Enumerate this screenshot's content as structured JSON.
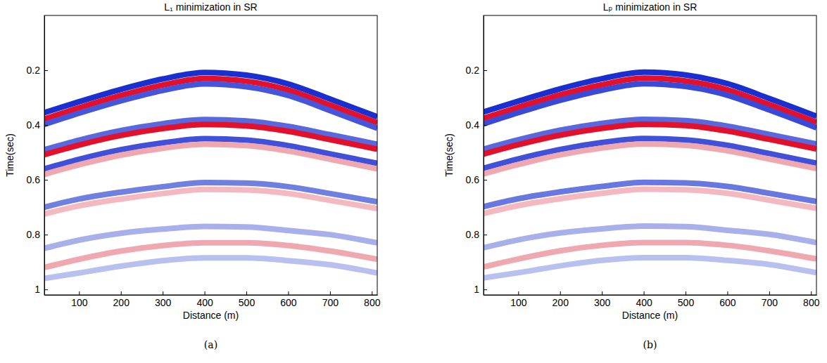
{
  "chart_data": [
    {
      "type": "line",
      "title": "L₁ minimization in SR",
      "annotation": "(a)",
      "x_label": "Distance (m)",
      "y_label": "Time(sec)",
      "xlim": [
        17,
        813
      ],
      "ylim": [
        0,
        1.02
      ],
      "xticks": [
        100,
        200,
        300,
        400,
        500,
        600,
        700,
        800
      ],
      "yticks": [
        0.2,
        0.4,
        0.6,
        0.8,
        1
      ],
      "x": [
        17,
        100,
        200,
        300,
        400,
        500,
        600,
        700,
        813
      ],
      "series": [
        {
          "color": "#1a2fd0",
          "values": [
            0.355,
            0.315,
            0.27,
            0.232,
            0.208,
            0.218,
            0.25,
            0.305,
            0.37
          ]
        },
        {
          "color": "#e3102b",
          "values": [
            0.378,
            0.337,
            0.292,
            0.254,
            0.23,
            0.24,
            0.272,
            0.327,
            0.392
          ]
        },
        {
          "color": "#4656dc",
          "values": [
            0.398,
            0.357,
            0.312,
            0.274,
            0.25,
            0.26,
            0.292,
            0.347,
            0.412
          ]
        },
        {
          "color": "#5a68e0",
          "values": [
            0.49,
            0.455,
            0.42,
            0.395,
            0.38,
            0.385,
            0.405,
            0.435,
            0.47
          ]
        },
        {
          "color": "#e3102b",
          "values": [
            0.508,
            0.473,
            0.438,
            0.413,
            0.398,
            0.403,
            0.423,
            0.453,
            0.488
          ]
        },
        {
          "color": "#4050d8",
          "values": [
            0.56,
            0.525,
            0.49,
            0.465,
            0.45,
            0.455,
            0.475,
            0.505,
            0.54
          ]
        },
        {
          "color": "#f0a8b0",
          "values": [
            0.58,
            0.545,
            0.51,
            0.485,
            0.47,
            0.475,
            0.495,
            0.525,
            0.56
          ]
        },
        {
          "color": "#7080e0",
          "values": [
            0.7,
            0.67,
            0.645,
            0.625,
            0.61,
            0.612,
            0.625,
            0.65,
            0.68
          ]
        },
        {
          "color": "#f4b8c0",
          "values": [
            0.725,
            0.695,
            0.67,
            0.65,
            0.635,
            0.637,
            0.65,
            0.675,
            0.705
          ]
        },
        {
          "color": "#a8b0ec",
          "values": [
            0.85,
            0.82,
            0.795,
            0.78,
            0.77,
            0.772,
            0.785,
            0.8,
            0.83
          ]
        },
        {
          "color": "#f0a8b0",
          "values": [
            0.92,
            0.89,
            0.86,
            0.84,
            0.83,
            0.83,
            0.84,
            0.86,
            0.89
          ]
        },
        {
          "color": "#b8c0f0",
          "values": [
            0.96,
            0.94,
            0.915,
            0.895,
            0.885,
            0.885,
            0.895,
            0.91,
            0.94
          ]
        }
      ]
    },
    {
      "type": "line",
      "title": "Lₚ minimization in SR",
      "annotation": "(b)",
      "x_label": "Distance (m)",
      "y_label": "Time(sec)",
      "xlim": [
        17,
        813
      ],
      "ylim": [
        0,
        1.02
      ],
      "xticks": [
        100,
        200,
        300,
        400,
        500,
        600,
        700,
        800
      ],
      "yticks": [
        0.2,
        0.4,
        0.6,
        0.8,
        1
      ],
      "x": [
        17,
        100,
        200,
        300,
        400,
        500,
        600,
        700,
        813
      ],
      "series": [
        {
          "color": "#1a2fd0",
          "values": [
            0.352,
            0.313,
            0.268,
            0.231,
            0.207,
            0.217,
            0.249,
            0.303,
            0.368
          ]
        },
        {
          "color": "#e3102b",
          "values": [
            0.375,
            0.335,
            0.29,
            0.253,
            0.229,
            0.239,
            0.271,
            0.325,
            0.39
          ]
        },
        {
          "color": "#3a4ad8",
          "values": [
            0.396,
            0.355,
            0.31,
            0.273,
            0.249,
            0.259,
            0.291,
            0.345,
            0.41
          ]
        },
        {
          "color": "#5a68e0",
          "values": [
            0.488,
            0.454,
            0.419,
            0.394,
            0.379,
            0.384,
            0.404,
            0.434,
            0.469
          ]
        },
        {
          "color": "#e3102b",
          "values": [
            0.506,
            0.472,
            0.437,
            0.412,
            0.397,
            0.402,
            0.422,
            0.452,
            0.487
          ]
        },
        {
          "color": "#4050d8",
          "values": [
            0.558,
            0.524,
            0.489,
            0.464,
            0.449,
            0.454,
            0.474,
            0.504,
            0.539
          ]
        },
        {
          "color": "#f0a8b0",
          "values": [
            0.578,
            0.544,
            0.509,
            0.484,
            0.469,
            0.474,
            0.494,
            0.524,
            0.559
          ]
        },
        {
          "color": "#6878e0",
          "values": [
            0.698,
            0.669,
            0.644,
            0.624,
            0.609,
            0.611,
            0.624,
            0.649,
            0.679
          ]
        },
        {
          "color": "#f4b8c0",
          "values": [
            0.723,
            0.694,
            0.669,
            0.649,
            0.634,
            0.636,
            0.649,
            0.674,
            0.704
          ]
        },
        {
          "color": "#a8b0ec",
          "values": [
            0.848,
            0.819,
            0.794,
            0.779,
            0.769,
            0.771,
            0.784,
            0.799,
            0.829
          ]
        },
        {
          "color": "#f0a8b0",
          "values": [
            0.918,
            0.889,
            0.859,
            0.839,
            0.829,
            0.829,
            0.839,
            0.859,
            0.889
          ]
        },
        {
          "color": "#b8c0f0",
          "values": [
            0.958,
            0.939,
            0.914,
            0.894,
            0.884,
            0.884,
            0.894,
            0.909,
            0.939
          ]
        }
      ]
    }
  ]
}
